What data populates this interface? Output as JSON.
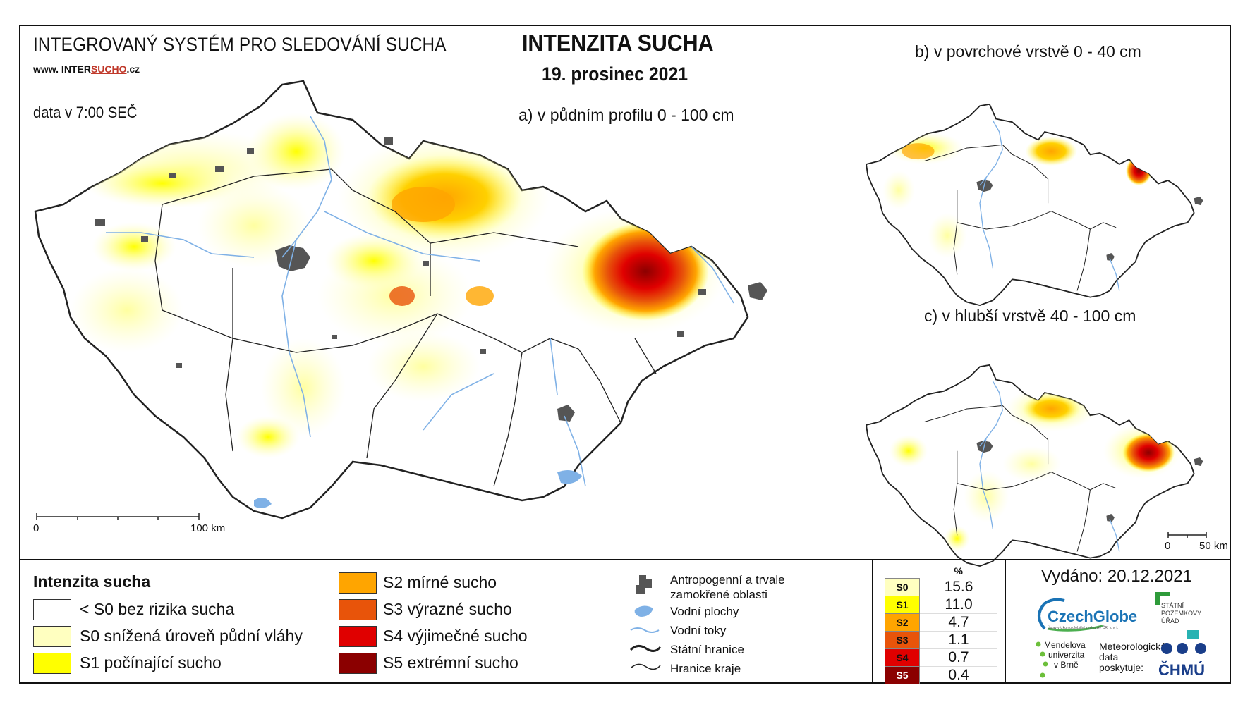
{
  "header": {
    "system_title": "INTEGROVANÝ SYSTÉM PRO SLEDOVÁNÍ SUCHA",
    "website_prefix": "www. INTER",
    "website_highlight": "SUCHO",
    "website_suffix": ".cz",
    "data_time": "data v 7:00 SEČ",
    "main_title": "INTENZITA SUCHA",
    "date": "19. prosinec 2021"
  },
  "maps": {
    "a_label": "a) v půdním profilu 0 - 100 cm",
    "b_label": "b) v povrchové vrstvě 0 - 40 cm",
    "c_label": "c) v hlubší vrstvě 40 - 100 cm",
    "scale_main": {
      "zero": "0",
      "end": "100 km"
    },
    "scale_small": {
      "zero": "0",
      "end": "50 km"
    }
  },
  "legend": {
    "title": "Intenzita sucha",
    "classes": [
      {
        "label": "< S0 bez rizika sucha",
        "color": "#ffffff"
      },
      {
        "label": "S0 snížená úroveň půdní vláhy",
        "color": "#ffffc0"
      },
      {
        "label": "S1 počínající sucho",
        "color": "#ffff00"
      },
      {
        "label": "S2 mírné sucho",
        "color": "#ffa500"
      },
      {
        "label": "S3 výrazné sucho",
        "color": "#e8540a"
      },
      {
        "label": "S4 výjimečné sucho",
        "color": "#e00000"
      },
      {
        "label": "S5 extrémní sucho",
        "color": "#8b0000"
      }
    ],
    "symbols": [
      {
        "label": "Antropogenní a trvale zamokřené oblasti",
        "icon": "urban-area-icon"
      },
      {
        "label": "Vodní plochy",
        "icon": "water-body-icon"
      },
      {
        "label": "Vodní toky",
        "icon": "river-icon"
      },
      {
        "label": "Státní hranice",
        "icon": "state-border-icon"
      },
      {
        "label": "Hranice kraje",
        "icon": "region-border-icon"
      }
    ]
  },
  "percentages": {
    "header": "%",
    "rows": [
      {
        "code": "S0",
        "value": "15.6",
        "color": "#ffffc0"
      },
      {
        "code": "S1",
        "value": "11.0",
        "color": "#ffff00"
      },
      {
        "code": "S2",
        "value": "4.7",
        "color": "#ffa500"
      },
      {
        "code": "S3",
        "value": "1.1",
        "color": "#e8540a"
      },
      {
        "code": "S4",
        "value": "0.7",
        "color": "#e00000"
      },
      {
        "code": "S5",
        "value": "0.4",
        "color": "#8b0000"
      }
    ]
  },
  "footer": {
    "issued": "Vydáno: 20.12.2021",
    "logos": {
      "czechglobe": "CzechGlobe",
      "czechglobe_sub": "Ústav výzkumu globální změny AV ČR, v. v. i.",
      "spu_lines": [
        "STÁTNÍ",
        "POZEMKOVÝ",
        "ÚŘAD"
      ],
      "mendelu_lines": [
        "Mendelova",
        "univerzita",
        "v Brně"
      ],
      "meteo_lines": [
        "Meteorologická",
        "data",
        "poskytuje:"
      ],
      "chmu": "ČHMÚ"
    }
  }
}
